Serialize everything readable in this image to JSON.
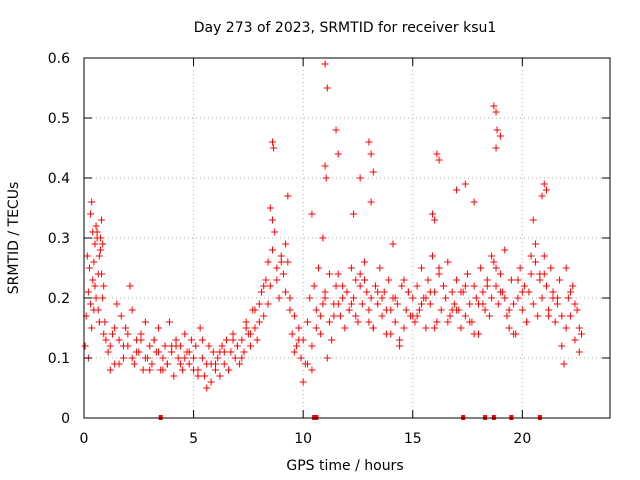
{
  "chart_data": {
    "type": "scatter",
    "title": "Day 273 of 2023, SRMTID for receiver ksu1",
    "xlabel": "GPS time / hours",
    "ylabel": "SRMTID / TECUs",
    "xlim": [
      0,
      24
    ],
    "ylim": [
      0,
      0.6
    ],
    "xticks": [
      0,
      5,
      10,
      15,
      20
    ],
    "xtick_labels": [
      "0",
      "5",
      "10",
      "15",
      "20"
    ],
    "yticks": [
      0,
      0.1,
      0.2,
      0.3,
      0.4,
      0.5,
      0.6
    ],
    "ytick_labels": [
      "0",
      "0.1",
      "0.2",
      "0.3",
      "0.4",
      "0.5",
      "0.6"
    ],
    "grid": true,
    "marker": "+",
    "series_color": "#ff0000",
    "series": [
      {
        "name": "ksu1",
        "x": [
          0.05,
          0.1,
          0.15,
          0.2,
          0.25,
          0.3,
          0.35,
          0.4,
          0.45,
          0.5,
          0.55,
          0.6,
          0.65,
          0.7,
          0.75,
          0.8,
          0.85,
          0.9,
          0.95,
          1.0,
          0.2,
          0.3,
          0.4,
          0.5,
          0.6,
          0.7,
          0.8,
          0.9,
          0.35,
          0.45,
          0.55,
          0.65,
          0.75,
          0.85,
          1.1,
          1.2,
          1.3,
          1.4,
          1.5,
          1.6,
          1.7,
          1.8,
          1.9,
          2.0,
          2.1,
          2.2,
          2.3,
          2.4,
          2.5,
          2.6,
          2.7,
          2.8,
          2.9,
          3.0,
          3.1,
          3.2,
          3.3,
          3.4,
          3.5,
          3.6,
          3.7,
          3.8,
          3.9,
          4.0,
          4.1,
          4.2,
          4.3,
          4.4,
          4.5,
          4.6,
          4.7,
          4.8,
          4.9,
          5.0,
          5.1,
          5.2,
          5.3,
          5.4,
          5.5,
          5.6,
          5.7,
          5.8,
          5.9,
          6.0,
          6.1,
          6.2,
          6.3,
          6.4,
          6.5,
          6.6,
          6.7,
          6.8,
          6.9,
          7.0,
          7.1,
          7.2,
          7.3,
          7.4,
          7.5,
          7.6,
          7.7,
          7.8,
          7.9,
          8.0,
          8.1,
          8.2,
          8.3,
          8.4,
          8.5,
          8.6,
          8.7,
          8.8,
          8.9,
          9.0,
          9.1,
          9.2,
          9.3,
          9.4,
          9.5,
          9.6,
          9.7,
          9.8,
          9.9,
          10.0,
          10.1,
          10.2,
          10.3,
          10.4,
          10.5,
          10.6,
          10.7,
          10.8,
          10.9,
          11.0,
          11.1,
          11.2,
          11.3,
          11.4,
          11.5,
          11.6,
          11.7,
          11.8,
          11.9,
          12.0,
          12.1,
          12.2,
          12.3,
          12.4,
          12.5,
          12.6,
          12.7,
          12.8,
          12.9,
          13.0,
          13.1,
          13.2,
          13.3,
          13.4,
          13.5,
          13.6,
          13.7,
          13.8,
          13.9,
          14.0,
          14.1,
          14.2,
          14.3,
          14.4,
          14.5,
          14.6,
          14.7,
          14.8,
          14.9,
          15.0,
          15.1,
          15.2,
          15.3,
          15.4,
          15.5,
          15.6,
          15.7,
          15.8,
          15.9,
          16.0,
          16.1,
          16.2,
          16.3,
          16.4,
          16.5,
          16.6,
          16.7,
          16.8,
          16.9,
          17.0,
          17.1,
          17.2,
          17.3,
          17.4,
          17.5,
          17.6,
          17.7,
          17.8,
          17.9,
          18.0,
          18.1,
          18.2,
          18.3,
          18.4,
          18.5,
          18.6,
          18.7,
          18.8,
          18.9,
          19.0,
          19.1,
          19.2,
          19.3,
          19.4,
          19.5,
          19.6,
          19.7,
          19.8,
          19.9,
          20.0,
          20.1,
          20.2,
          20.3,
          20.4,
          20.5,
          20.6,
          20.7,
          20.8,
          20.9,
          21.0,
          21.1,
          21.2,
          21.3,
          21.4,
          21.5,
          21.6,
          21.7,
          21.8,
          21.9,
          22.0,
          22.1,
          22.2,
          22.3,
          22.4,
          22.5,
          22.6,
          22.7,
          1.2,
          1.6,
          2.0,
          2.4,
          2.8,
          3.2,
          3.6,
          4.0,
          4.4,
          4.8,
          5.2,
          5.6,
          6.0,
          6.4,
          6.8,
          7.2,
          7.6,
          8.0,
          8.4,
          8.8,
          9.2,
          9.6,
          10.0,
          10.4,
          10.8,
          11.2,
          11.6,
          12.0,
          12.4,
          12.8,
          13.2,
          13.6,
          14.0,
          14.4,
          14.8,
          15.2,
          15.6,
          16.0,
          16.4,
          16.8,
          17.2,
          17.6,
          18.0,
          18.4,
          18.8,
          19.2,
          19.6,
          20.0,
          20.4,
          20.8,
          21.2,
          21.6,
          22.0,
          22.4,
          1.4,
          1.8,
          2.2,
          2.6,
          3.0,
          3.4,
          3.8,
          4.2,
          4.6,
          5.0,
          5.4,
          5.8,
          6.2,
          6.6,
          7.0,
          7.4,
          7.8,
          8.2,
          8.6,
          9.0,
          9.4,
          9.8,
          10.2,
          10.6,
          11.0,
          11.4,
          11.8,
          12.2,
          12.6,
          13.0,
          13.4,
          13.8,
          14.2,
          14.6,
          15.0,
          15.4,
          15.8,
          16.2,
          16.6,
          17.0,
          17.4,
          17.8,
          18.2,
          18.6,
          19.0,
          19.4,
          19.8,
          20.2,
          20.6,
          21.0,
          21.4,
          21.8,
          22.2,
          22.6,
          8.6,
          8.65,
          11.0,
          11.1,
          11.5,
          11.6,
          12.6,
          13.0,
          13.1,
          13.2,
          16.1,
          16.2,
          17.0,
          17.4,
          17.8,
          18.7,
          18.8,
          18.85,
          19.0,
          20.5,
          20.9,
          21.0,
          21.1,
          11.0,
          11.05,
          13.1,
          16.0,
          18.8,
          10.4,
          10.9,
          12.3,
          9.3,
          8.5,
          14.1,
          15.9
        ],
        "y": [
          0.12,
          0.17,
          0.27,
          0.21,
          0.25,
          0.34,
          0.36,
          0.31,
          0.26,
          0.22,
          0.32,
          0.3,
          0.18,
          0.16,
          0.28,
          0.33,
          0.2,
          0.14,
          0.16,
          0.13,
          0.1,
          0.19,
          0.23,
          0.29,
          0.31,
          0.27,
          0.24,
          0.22,
          0.15,
          0.18,
          0.2,
          0.24,
          0.3,
          0.29,
          0.11,
          0.08,
          0.14,
          0.09,
          0.19,
          0.13,
          0.17,
          0.1,
          0.15,
          0.12,
          0.22,
          0.18,
          0.09,
          0.13,
          0.11,
          0.14,
          0.08,
          0.16,
          0.1,
          0.12,
          0.09,
          0.13,
          0.11,
          0.15,
          0.08,
          0.1,
          0.12,
          0.09,
          0.16,
          0.11,
          0.07,
          0.13,
          0.1,
          0.12,
          0.08,
          0.14,
          0.11,
          0.09,
          0.13,
          0.1,
          0.12,
          0.08,
          0.15,
          0.1,
          0.07,
          0.09,
          0.12,
          0.06,
          0.11,
          0.08,
          0.1,
          0.07,
          0.12,
          0.09,
          0.13,
          0.08,
          0.11,
          0.14,
          0.1,
          0.12,
          0.09,
          0.13,
          0.11,
          0.16,
          0.14,
          0.12,
          0.18,
          0.15,
          0.13,
          0.19,
          0.21,
          0.17,
          0.23,
          0.26,
          0.22,
          0.28,
          0.31,
          0.25,
          0.2,
          0.27,
          0.24,
          0.21,
          0.26,
          0.18,
          0.14,
          0.17,
          0.12,
          0.15,
          0.1,
          0.13,
          0.09,
          0.16,
          0.2,
          0.12,
          0.22,
          0.18,
          0.25,
          0.14,
          0.19,
          0.21,
          0.1,
          0.16,
          0.13,
          0.19,
          0.22,
          0.24,
          0.17,
          0.2,
          0.15,
          0.21,
          0.18,
          0.25,
          0.2,
          0.23,
          0.16,
          0.22,
          0.19,
          0.26,
          0.21,
          0.18,
          0.2,
          0.15,
          0.22,
          0.19,
          0.25,
          0.17,
          0.21,
          0.18,
          0.23,
          0.14,
          0.2,
          0.16,
          0.19,
          0.12,
          0.22,
          0.15,
          0.18,
          0.21,
          0.17,
          0.2,
          0.16,
          0.22,
          0.18,
          0.25,
          0.2,
          0.15,
          0.23,
          0.19,
          0.27,
          0.21,
          0.16,
          0.24,
          0.18,
          0.22,
          0.2,
          0.26,
          0.17,
          0.21,
          0.19,
          0.23,
          0.18,
          0.15,
          0.21,
          0.17,
          0.24,
          0.19,
          0.16,
          0.22,
          0.2,
          0.14,
          0.25,
          0.21,
          0.18,
          0.23,
          0.17,
          0.2,
          0.26,
          0.22,
          0.19,
          0.24,
          0.21,
          0.28,
          0.17,
          0.15,
          0.23,
          0.19,
          0.14,
          0.2,
          0.25,
          0.18,
          0.22,
          0.16,
          0.21,
          0.24,
          0.19,
          0.26,
          0.17,
          0.23,
          0.2,
          0.27,
          0.22,
          0.18,
          0.25,
          0.21,
          0.16,
          0.19,
          0.23,
          0.12,
          0.09,
          0.15,
          0.2,
          0.17,
          0.22,
          0.13,
          0.18,
          0.11,
          0.14,
          0.12,
          0.09,
          0.14,
          0.11,
          0.1,
          0.13,
          0.08,
          0.12,
          0.09,
          0.11,
          0.07,
          0.05,
          0.09,
          0.11,
          0.13,
          0.1,
          0.14,
          0.16,
          0.19,
          0.23,
          0.29,
          0.11,
          0.06,
          0.08,
          0.17,
          0.24,
          0.19,
          0.21,
          0.17,
          0.23,
          0.15,
          0.2,
          0.18,
          0.13,
          0.21,
          0.17,
          0.2,
          0.15,
          0.22,
          0.18,
          0.21,
          0.16,
          0.19,
          0.22,
          0.25,
          0.2,
          0.14,
          0.21,
          0.27,
          0.24,
          0.17,
          0.2,
          0.25,
          0.19,
          0.15,
          0.12,
          0.1,
          0.13,
          0.08,
          0.11,
          0.09,
          0.12,
          0.1,
          0.08,
          0.13,
          0.09,
          0.11,
          0.08,
          0.12,
          0.15,
          0.18,
          0.22,
          0.33,
          0.26,
          0.2,
          0.13,
          0.09,
          0.15,
          0.2,
          0.17,
          0.22,
          0.19,
          0.24,
          0.16,
          0.21,
          0.14,
          0.2,
          0.23,
          0.17,
          0.19,
          0.21,
          0.25,
          0.16,
          0.18,
          0.22,
          0.14,
          0.19,
          0.27,
          0.21,
          0.18,
          0.23,
          0.16,
          0.29,
          0.24,
          0.2,
          0.17,
          0.21,
          0.15,
          0.46,
          0.45,
          0.59,
          0.55,
          0.48,
          0.44,
          0.4,
          0.46,
          0.44,
          0.41,
          0.44,
          0.43,
          0.38,
          0.39,
          0.36,
          0.52,
          0.51,
          0.48,
          0.47,
          0.33,
          0.37,
          0.39,
          0.38,
          0.42,
          0.4,
          0.36,
          0.33,
          0.45,
          0.34,
          0.3,
          0.34,
          0.37,
          0.35,
          0.29,
          0.34
        ]
      }
    ],
    "gap_markers_x": [
      3.5,
      10.5,
      10.6,
      17.3,
      18.3,
      18.7,
      19.5,
      20.8
    ]
  }
}
